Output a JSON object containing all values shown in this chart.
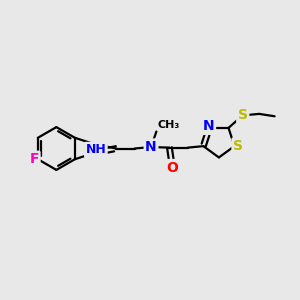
{
  "background_color": "#e8e8e8",
  "bond_color": "#000000",
  "bond_width": 1.6,
  "atom_colors": {
    "F": "#ff00cc",
    "N": "#0000ff",
    "O": "#ff0000",
    "S": "#bbbb00",
    "H": "#777777",
    "C": "#000000"
  },
  "font_size_atom": 10,
  "font_size_small": 9,
  "figsize": [
    3.0,
    3.0
  ],
  "dpi": 100
}
